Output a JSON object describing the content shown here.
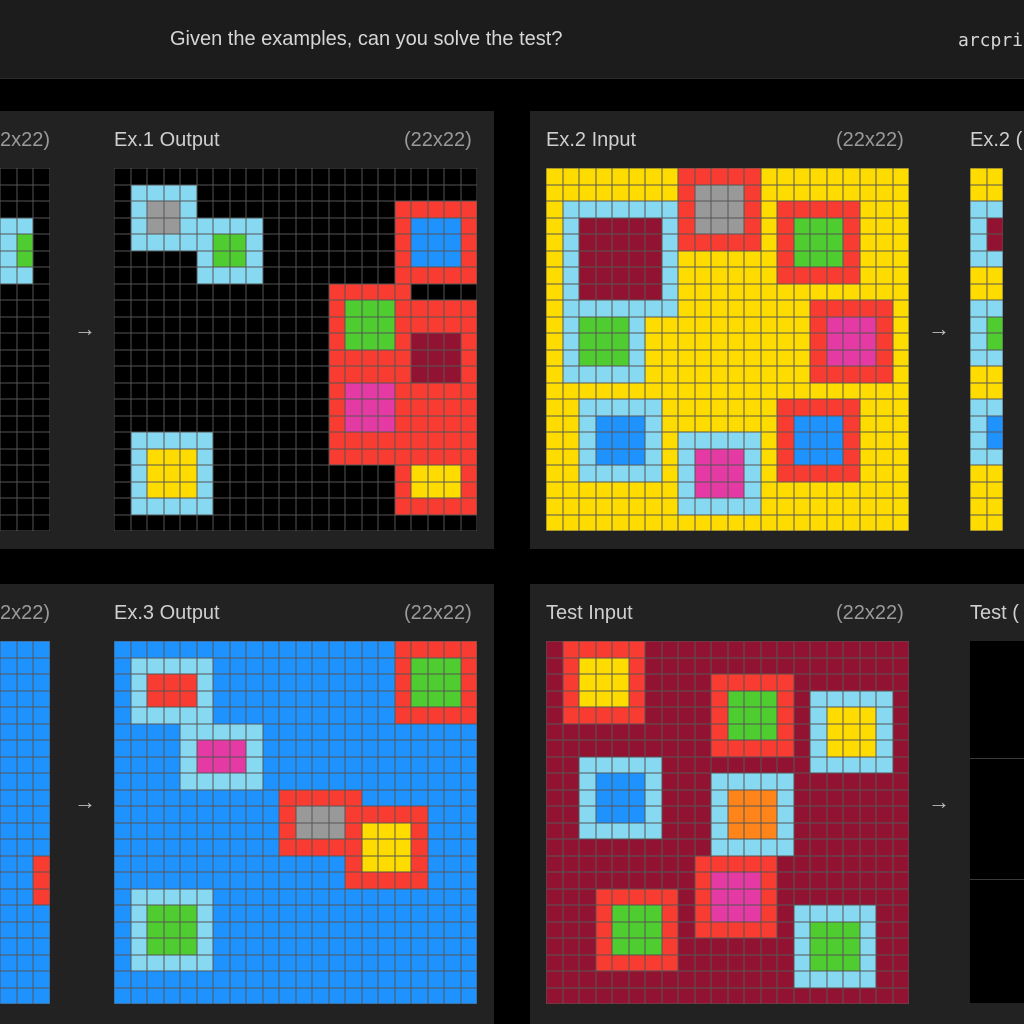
{
  "header": {
    "prompt": "Given the examples, can you solve the test?",
    "brand": "arcpri"
  },
  "labels": {
    "ex1_in_dim": "2x22)",
    "ex1_out": "Ex.1 Output",
    "ex1_out_dim": "(22x22)",
    "ex2_in": "Ex.2 Input",
    "ex2_in_dim": "(22x22)",
    "ex2_out": "Ex.2 (",
    "ex3_in_dim": "2x22)",
    "ex3_out": "Ex.3 Output",
    "ex3_out_dim": "(22x22)",
    "test_in": "Test Input",
    "test_in_dim": "(22x22)",
    "test_out": "Test ("
  },
  "arrow": "→",
  "colors": {
    "0": "#000000",
    "1": "#1E93FF",
    "2": "#F93C31",
    "3": "#4FCC30",
    "4": "#FFDC00",
    "5": "#999999",
    "6": "#E53AA3",
    "7": "#FF851B",
    "8": "#87D8F1",
    "9": "#921231"
  },
  "grids": {
    "ex1_output": {
      "rows": [
        "0000000000000000000000",
        "0888800000000000000000",
        "0855800000000000022222",
        "0855888880000000021112",
        "0888883380000000021112",
        "0000083380000000021112",
        "0000088880000000022222",
        "0000000000000222220000",
        "0000000000000233322222",
        "0000000000000233322222",
        "0000000000000233329992",
        "0000000000000222229992",
        "0000000000000222229992",
        "0000000000000266622222",
        "0000000000000266622222",
        "0000000000000266622222",
        "0888880000000222222222",
        "0844480000000222222222",
        "0844480000000000024442",
        "0844480000000000024442",
        "0888880000000000022222",
        "0000000000000000000000"
      ]
    },
    "ex2_input": {
      "rows": [
        "4444444444444444444444",
        "4444444444444444444444",
        "4444444444444444444444",
        "4444444444444444444444",
        "4444444444444444444444",
        "4444444444444444444444",
        "4444444444444444444444",
        "4444444444444444444444",
        "4444444444444444444444",
        "4444444444444444444444",
        "4444444444444444444444",
        "4444444444444444444444",
        "4444444444444444444444",
        "4444444444444444444444",
        "4444444444444444444444",
        "4444444444444444444444",
        "4444444444444444444444",
        "4444444444444444444444",
        "4444444444444444444444",
        "4444444444444444444444",
        "4444444444444444444444",
        "4444444444444444444444"
      ],
      "boxes": [
        {
          "r": 2,
          "c": 1,
          "s": 7,
          "o": 8,
          "i": 9
        },
        {
          "r": 0,
          "c": 8,
          "s": 5,
          "o": 2,
          "i": 5
        },
        {
          "r": 2,
          "c": 14,
          "s": 5,
          "o": 2,
          "i": 3
        },
        {
          "r": 8,
          "c": 1,
          "s": 5,
          "o": 8,
          "i": 3
        },
        {
          "r": 8,
          "c": 16,
          "s": 5,
          "o": 2,
          "i": 6
        },
        {
          "r": 14,
          "c": 2,
          "s": 5,
          "o": 8,
          "i": 1
        },
        {
          "r": 16,
          "c": 8,
          "s": 5,
          "o": 8,
          "i": 6
        },
        {
          "r": 14,
          "c": 14,
          "s": 5,
          "o": 2,
          "i": 1
        }
      ]
    },
    "ex3_output": {
      "rows": [
        "1111111111111111122222",
        "1888881111111111123332",
        "1822281111111111123332",
        "1822281111111111123332",
        "1888881111111111122222",
        "1111888881111111111111",
        "1111866681111111111111",
        "1111866681111111111111",
        "1111888881111111111111",
        "1111111111222221111111",
        "1111111111255522222111",
        "1111111111255524442111",
        "1111111111222224442111",
        "1111111111111124442111",
        "1111111111111122222111",
        "1888881111111111111111",
        "1833381111111111111111",
        "1833381111111111111111",
        "1833381111111111111111",
        "1888881111111111111111",
        "1111111111111111111111",
        "1111111111111111111111"
      ]
    },
    "test_input": {
      "rows": [
        "9999999999999999999999",
        "9999999999999999999999",
        "9999999999999999999999",
        "9999999999999999999999",
        "9999999999999999999999",
        "9999999999999999999999",
        "9999999999999999999999",
        "9999999999999999999999",
        "9999999999999999999999",
        "9999999999999999999999",
        "9999999999999999999999",
        "9999999999999999999999",
        "9999999999999999999999",
        "9999999999999999999999",
        "9999999999999999999999",
        "9999999999999999999999",
        "9999999999999999999999",
        "9999999999999999999999",
        "9999999999999999999999",
        "9999999999999999999999",
        "9999999999999999999999",
        "9999999999999999999999"
      ],
      "boxes": [
        {
          "r": 0,
          "c": 1,
          "s": 5,
          "o": 2,
          "i": 4
        },
        {
          "r": 2,
          "c": 10,
          "s": 5,
          "o": 2,
          "i": 3
        },
        {
          "r": 3,
          "c": 16,
          "s": 5,
          "o": 8,
          "i": 4
        },
        {
          "r": 7,
          "c": 2,
          "s": 5,
          "o": 8,
          "i": 1
        },
        {
          "r": 8,
          "c": 10,
          "s": 5,
          "o": 8,
          "i": 7
        },
        {
          "r": 13,
          "c": 9,
          "s": 5,
          "o": 2,
          "i": 6
        },
        {
          "r": 15,
          "c": 3,
          "s": 5,
          "o": 2,
          "i": 3
        },
        {
          "r": 16,
          "c": 15,
          "s": 5,
          "o": 8,
          "i": 3
        }
      ]
    },
    "ex1_input_partial": {
      "rows": [
        "000",
        "000",
        "000",
        "880",
        "830",
        "830",
        "880",
        "000",
        "000",
        "000",
        "000",
        "000",
        "000",
        "000",
        "000",
        "000",
        "000",
        "000",
        "000",
        "000",
        "000",
        "000"
      ]
    },
    "ex2_output_partial": {
      "rows": [
        "44",
        "44",
        "88",
        "89",
        "89",
        "88",
        "44",
        "44",
        "88",
        "83",
        "83",
        "88",
        "44",
        "44",
        "88",
        "81",
        "81",
        "88",
        "44",
        "44",
        "44",
        "44"
      ]
    },
    "ex3_input_partial": {
      "rows": [
        "111",
        "111",
        "111",
        "111",
        "111",
        "111",
        "111",
        "111",
        "111",
        "111",
        "111",
        "111",
        "111",
        "112",
        "112",
        "112",
        "111",
        "111",
        "111",
        "111",
        "111",
        "111"
      ]
    }
  }
}
